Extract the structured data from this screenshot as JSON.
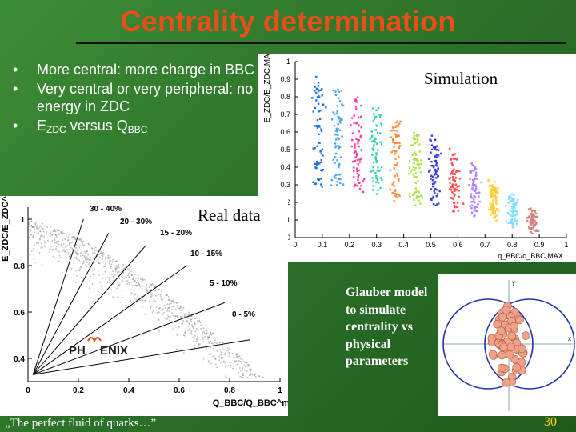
{
  "slide": {
    "title": "Centrality determination",
    "bullets": [
      {
        "html": "More central: more charge in BBC"
      },
      {
        "html": "Very central or very peripheral: no energy in ZDC"
      },
      {
        "html": "E<sub>ZDC</sub> versus Q<sub>BBC</sub>"
      }
    ],
    "bullet_glyph": "•",
    "footer": "„The perfect fluid of quarks…”",
    "page_number": "30",
    "glauber_text": "Glauber model to simulate centrality vs physical parameters",
    "colors": {
      "title": "#e94e1b",
      "background": "#2d7a2a",
      "page_number": "#ffd700"
    }
  },
  "simulation_panel": {
    "label": "Simulation",
    "y_axis_title": "E_ZDC/E_ZDC,MAX",
    "x_axis_title": "q_BBC/q_BBC,MAX",
    "x_ticks": [
      "0",
      "0.1",
      "0.2",
      "0.3",
      "0.4",
      "0.5",
      "0.6",
      "0.7",
      "0.8",
      "0.9",
      "1"
    ],
    "y_ticks": [
      "0",
      "0.1",
      "0.2",
      "0.3",
      "0.4",
      "0.5",
      "0.6",
      "0.7",
      "0.8",
      "0.9",
      "1"
    ],
    "band_colors": [
      "#1e6fe0",
      "#4aa8f0",
      "#ff3aa0",
      "#33d0b0",
      "#ff8a3a",
      "#aee04a",
      "#3a3ae0",
      "#ff4a4a",
      "#b080ff",
      "#ffcc33",
      "#80e0ff",
      "#d88080"
    ]
  },
  "real_data_panel": {
    "label": "Real data",
    "y_axis_title": "E_ZDC/E_ZDC^max",
    "x_axis_title": "Q_BBC/Q_BBC^max",
    "x_ticks": [
      "0",
      "0.2",
      "0.4",
      "0.6",
      "0.8",
      "1"
    ],
    "y_ticks": [
      "0.4",
      "0.6",
      "0.8",
      "1"
    ],
    "centrality_labels": [
      "30 - 40%",
      "20 - 30%",
      "15 - 20%",
      "10 - 15%",
      "5 - 10%",
      "0 - 5%"
    ],
    "logo_text": [
      "PH",
      "ENIX"
    ]
  },
  "glauber_panel": {
    "x_axis": "x",
    "y_axis": "y"
  }
}
